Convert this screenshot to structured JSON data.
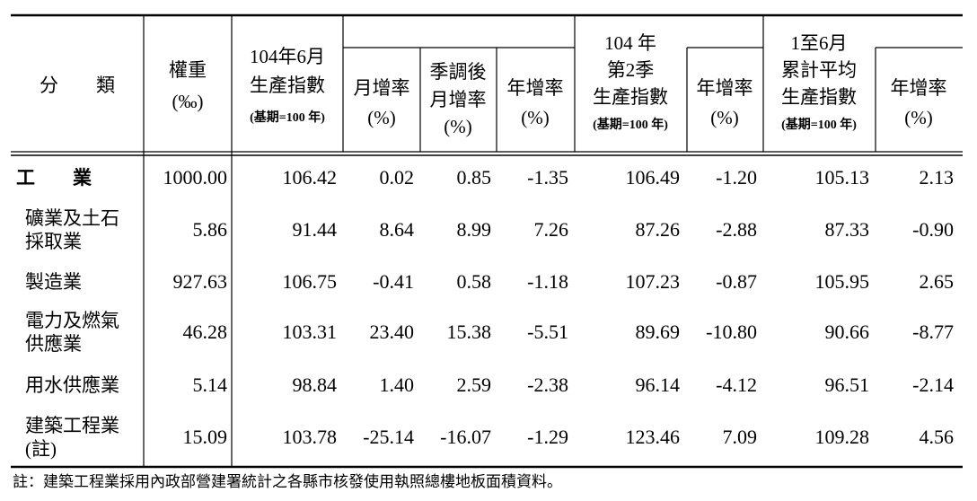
{
  "header": {
    "columns": [
      {
        "lines": [
          "分　　類"
        ]
      },
      {
        "lines": [
          "權重",
          "(‰)"
        ]
      },
      {
        "lines": [
          "104年6月",
          "生產指數"
        ],
        "base": "(基期=100 年)"
      },
      {
        "lines": [
          "月增率",
          "(%)"
        ]
      },
      {
        "lines": [
          "季調後",
          "月增率",
          "(%)"
        ]
      },
      {
        "lines": [
          "年增率",
          "(%)"
        ]
      },
      {
        "lines": [
          "104 年",
          "第2季",
          "生產指數"
        ],
        "base": "(基期=100 年)"
      },
      {
        "lines": [
          "年增率",
          "(%)"
        ]
      },
      {
        "lines": [
          "1至6月",
          "累計平均",
          "生產指數"
        ],
        "base": "(基期=100 年)"
      },
      {
        "lines": [
          "年增率",
          "(%)"
        ]
      }
    ]
  },
  "rows": [
    {
      "label": [
        "工　　業"
      ],
      "values": [
        "1000.00",
        "106.42",
        "0.02",
        "0.85",
        "-1.35",
        "106.49",
        "-1.20",
        "105.13",
        "2.13"
      ]
    },
    {
      "label": [
        "礦業及土石",
        "採取業"
      ],
      "values": [
        "5.86",
        "91.44",
        "8.64",
        "8.99",
        "7.26",
        "87.26",
        "-2.88",
        "87.33",
        "-0.90"
      ]
    },
    {
      "label": [
        "製造業"
      ],
      "values": [
        "927.63",
        "106.75",
        "-0.41",
        "0.58",
        "-1.18",
        "107.23",
        "-0.87",
        "105.95",
        "2.65"
      ]
    },
    {
      "label": [
        "電力及燃氣",
        "供應業"
      ],
      "values": [
        "46.28",
        "103.31",
        "23.40",
        "15.38",
        "-5.51",
        "89.69",
        "-10.80",
        "90.66",
        "-8.77"
      ]
    },
    {
      "label": [
        "用水供應業"
      ],
      "values": [
        "5.14",
        "98.84",
        "1.40",
        "2.59",
        "-2.38",
        "96.14",
        "-4.12",
        "96.51",
        "-2.14"
      ]
    },
    {
      "label": [
        "建築工程業",
        "(註)"
      ],
      "values": [
        "15.09",
        "103.78",
        "-25.14",
        "-16.07",
        "-1.29",
        "123.46",
        "7.09",
        "109.28",
        "4.56"
      ]
    }
  ],
  "footnote": "註：建築工程業採用內政部營建署統計之各縣市核發使用執照總樓地板面積資料。"
}
